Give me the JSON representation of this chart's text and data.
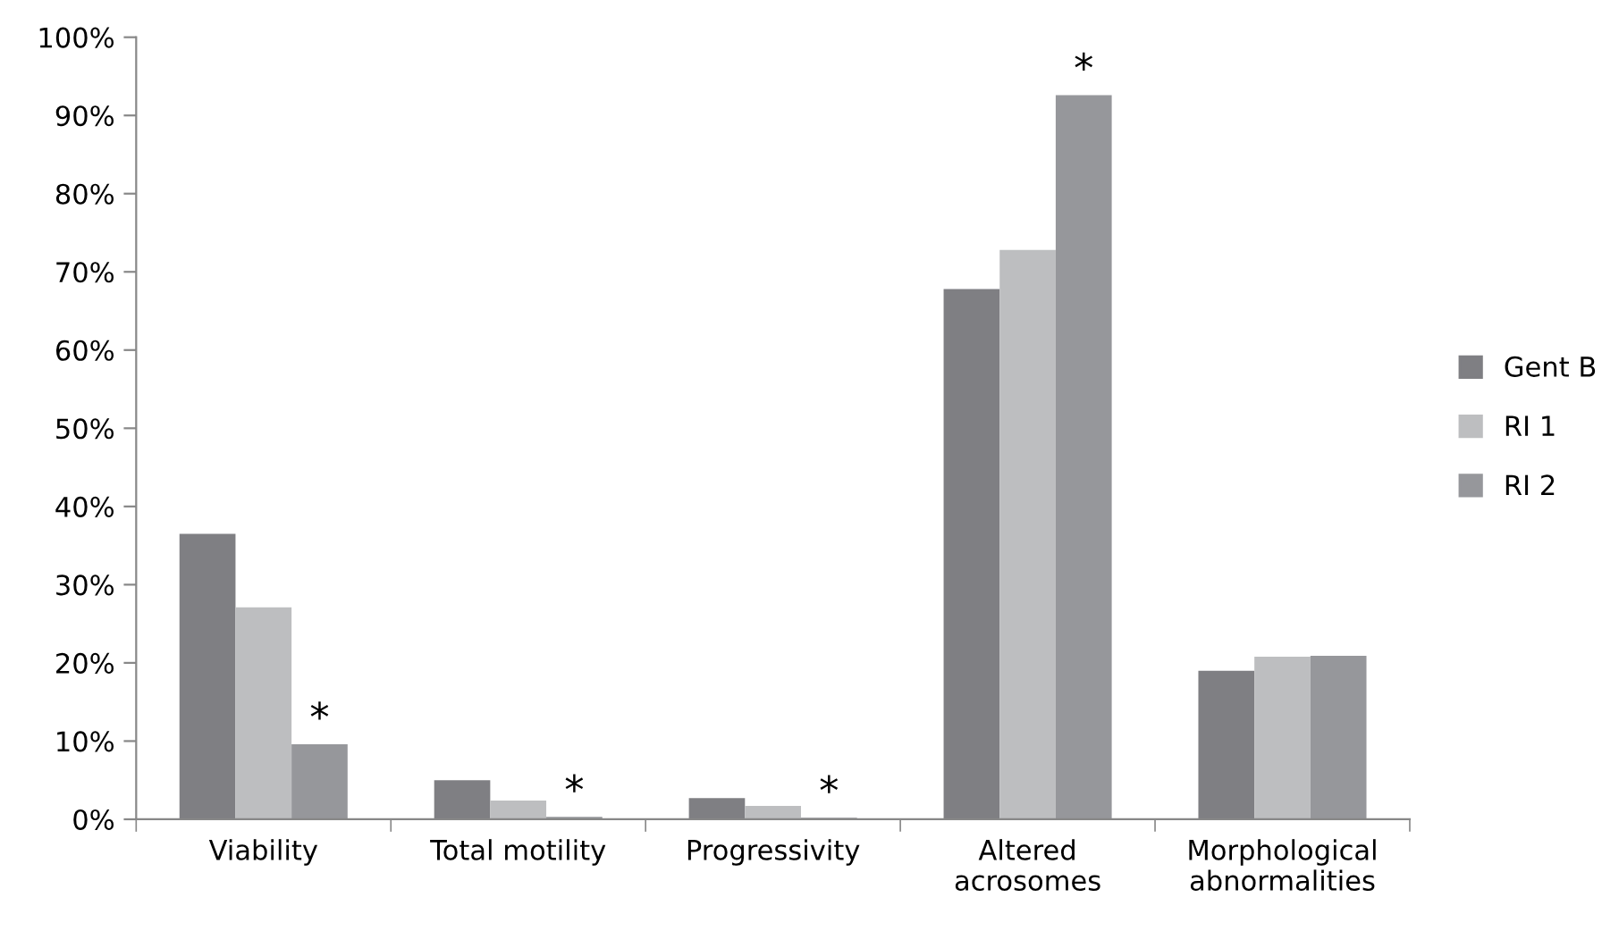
{
  "chart_data": {
    "type": "bar",
    "categories": [
      "Viability",
      "Total motility",
      "Progressivity",
      "Altered\nacrosomes",
      "Morphological\nabnormalities"
    ],
    "series": [
      {
        "name": "Gent B",
        "color": "#7f7f83",
        "values": [
          36.5,
          5.0,
          2.7,
          67.8,
          19.0
        ]
      },
      {
        "name": "RI 1",
        "color": "#bdbec0",
        "values": [
          27.1,
          2.4,
          1.7,
          72.8,
          20.8
        ]
      },
      {
        "name": "RI 2",
        "color": "#96979b",
        "values": [
          9.6,
          0.3,
          0.2,
          92.6,
          20.9
        ],
        "value_labels": [
          "*",
          "*",
          "*",
          "*",
          null
        ]
      }
    ],
    "ylim": [
      0,
      100
    ],
    "yticks": [
      {
        "value": 0,
        "label": "0%"
      },
      {
        "value": 10,
        "label": "10%"
      },
      {
        "value": 20,
        "label": "20%"
      },
      {
        "value": 30,
        "label": "30%"
      },
      {
        "value": 40,
        "label": "40%"
      },
      {
        "value": 50,
        "label": "50%"
      },
      {
        "value": 60,
        "label": "60%"
      },
      {
        "value": 70,
        "label": "70%"
      },
      {
        "value": 80,
        "label": "80%"
      },
      {
        "value": 90,
        "label": "90%"
      },
      {
        "value": 100,
        "label": "100%"
      }
    ],
    "grid": false,
    "legend": "right"
  }
}
